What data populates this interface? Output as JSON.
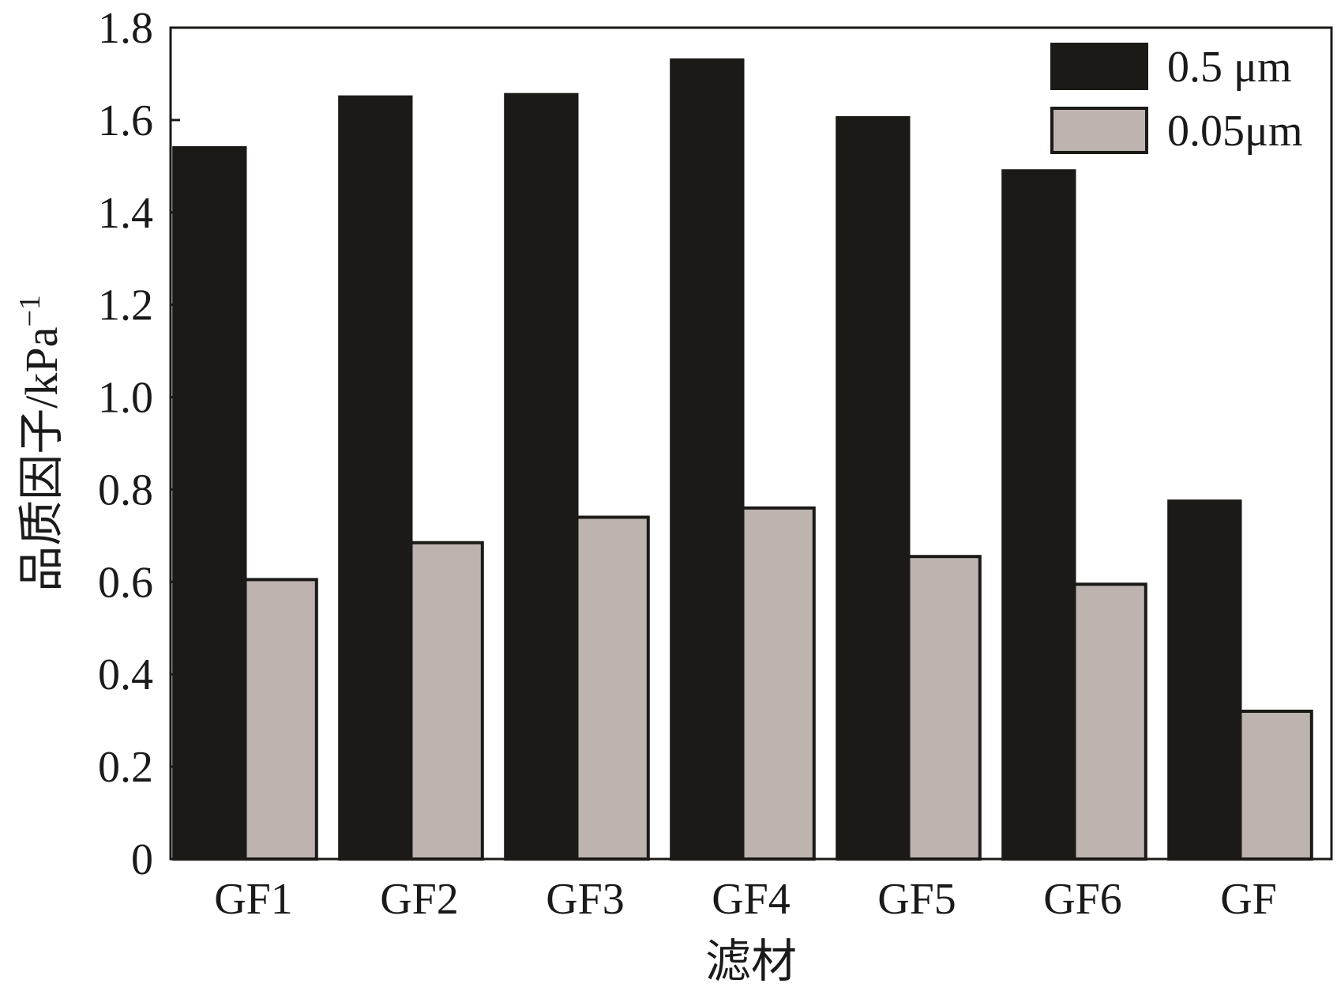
{
  "chart_data": {
    "type": "bar",
    "categories": [
      "GF1",
      "GF2",
      "GF3",
      "GF4",
      "GF5",
      "GF6",
      "GF"
    ],
    "series": [
      {
        "name": "0.5 μm",
        "values": [
          1.54,
          1.65,
          1.655,
          1.73,
          1.605,
          1.49,
          0.775
        ],
        "color": "#1b1a17"
      },
      {
        "name": "0.05μm",
        "values": [
          0.605,
          0.685,
          0.74,
          0.76,
          0.655,
          0.595,
          0.32
        ],
        "color": "#bdb4b0"
      }
    ],
    "title": "",
    "xlabel": "滤材",
    "ylabel_main": "品质因子/kPa",
    "ylabel_sup": "−1",
    "ylim": [
      0,
      1.8
    ],
    "yticks": [
      0,
      0.2,
      0.4,
      0.6,
      0.8,
      1.0,
      1.2,
      1.4,
      1.6,
      1.8
    ],
    "ytick_labels": [
      "0",
      "0.2",
      "0.4",
      "0.6",
      "0.8",
      "1.0",
      "1.2",
      "1.4",
      "1.6",
      "1.8"
    ],
    "grid": false,
    "legend_position": "top-right",
    "outline_color": "#1b1a17"
  }
}
